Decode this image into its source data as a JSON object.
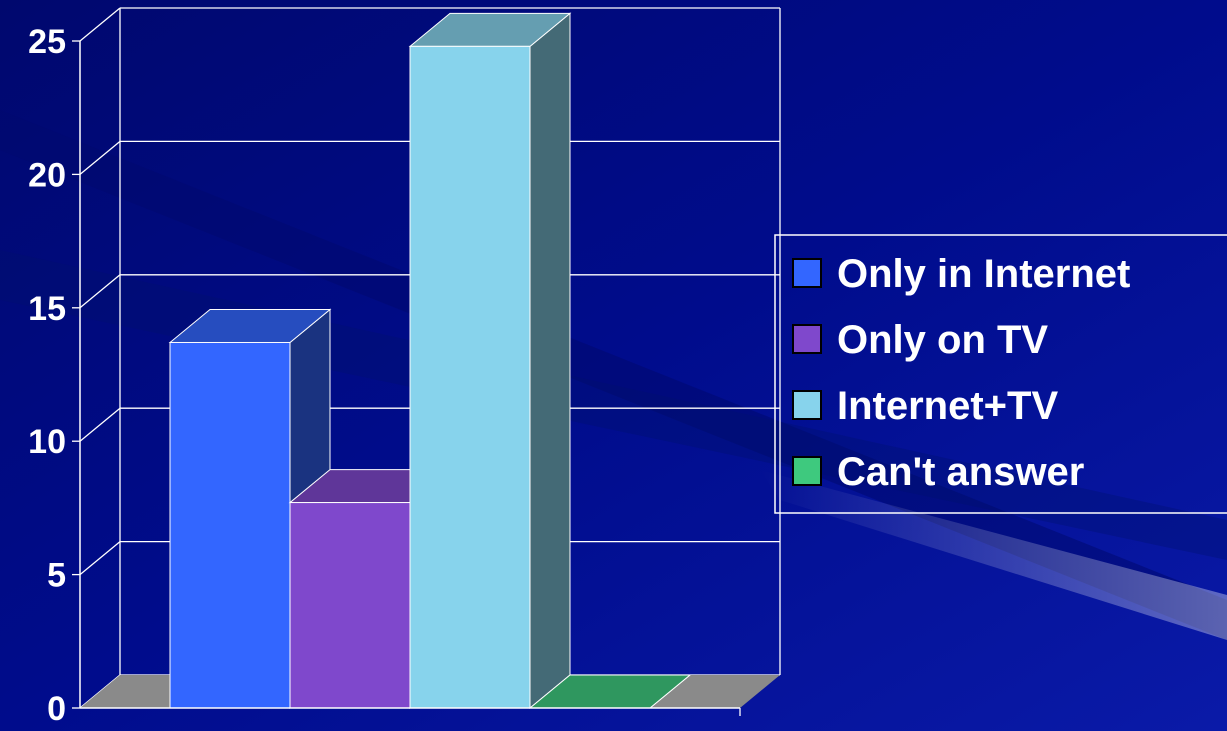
{
  "chart_data": {
    "type": "bar",
    "title": "",
    "xlabel": "",
    "ylabel": "",
    "ylim": [
      0,
      25
    ],
    "yticks": [
      "0",
      "5",
      "10",
      "15",
      "20",
      "25"
    ],
    "grid": true,
    "legend_position": "right",
    "series": [
      {
        "name": "Only in Internet",
        "value": 13.7,
        "color": "#3366ff"
      },
      {
        "name": "Only on TV",
        "value": 7.7,
        "color": "#7f48cc"
      },
      {
        "name": "Internet+TV",
        "value": 24.8,
        "color": "#87d3ec"
      },
      {
        "name": "Can't answer",
        "value": 0,
        "color": "#3ec97e"
      }
    ]
  },
  "colors": {
    "background": "#000c8c",
    "grid": "#ffffff",
    "floor": "#8a8a8a"
  }
}
